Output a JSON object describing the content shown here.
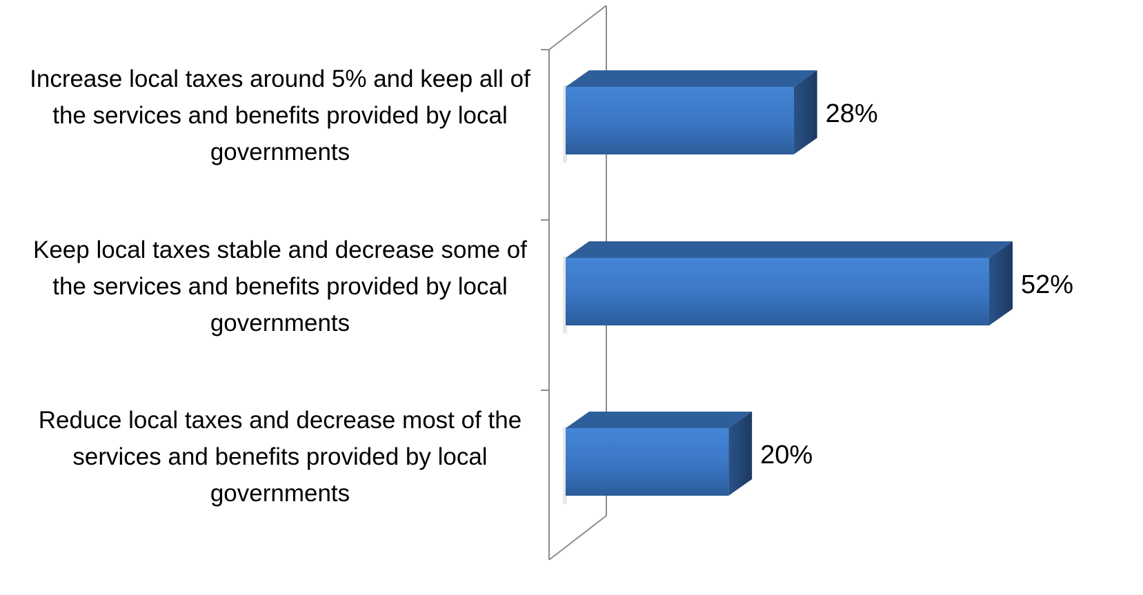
{
  "chart_data": {
    "type": "bar",
    "orientation": "horizontal",
    "style": "3d",
    "categories": [
      [
        "Increase local taxes around 5% and keep all of",
        "the services and benefits provided by local",
        "governments"
      ],
      [
        "Keep local taxes stable and decrease some of",
        "the services and benefits provided by local",
        "governments"
      ],
      [
        "Reduce local taxes and decrease most of the",
        "services and benefits provided by local",
        "governments"
      ]
    ],
    "values": [
      28,
      52,
      20
    ],
    "data_labels": [
      "28%",
      "52%",
      "20%"
    ],
    "xlim": [
      0,
      52
    ],
    "grid": false,
    "legend": "none",
    "colors": {
      "bar_front_light": "#4080d0",
      "bar_front_dark": "#2d5f9e",
      "bar_top": "#2f5f9a",
      "bar_side": "#1f3f6a",
      "axis": "#8c8c8c"
    }
  }
}
